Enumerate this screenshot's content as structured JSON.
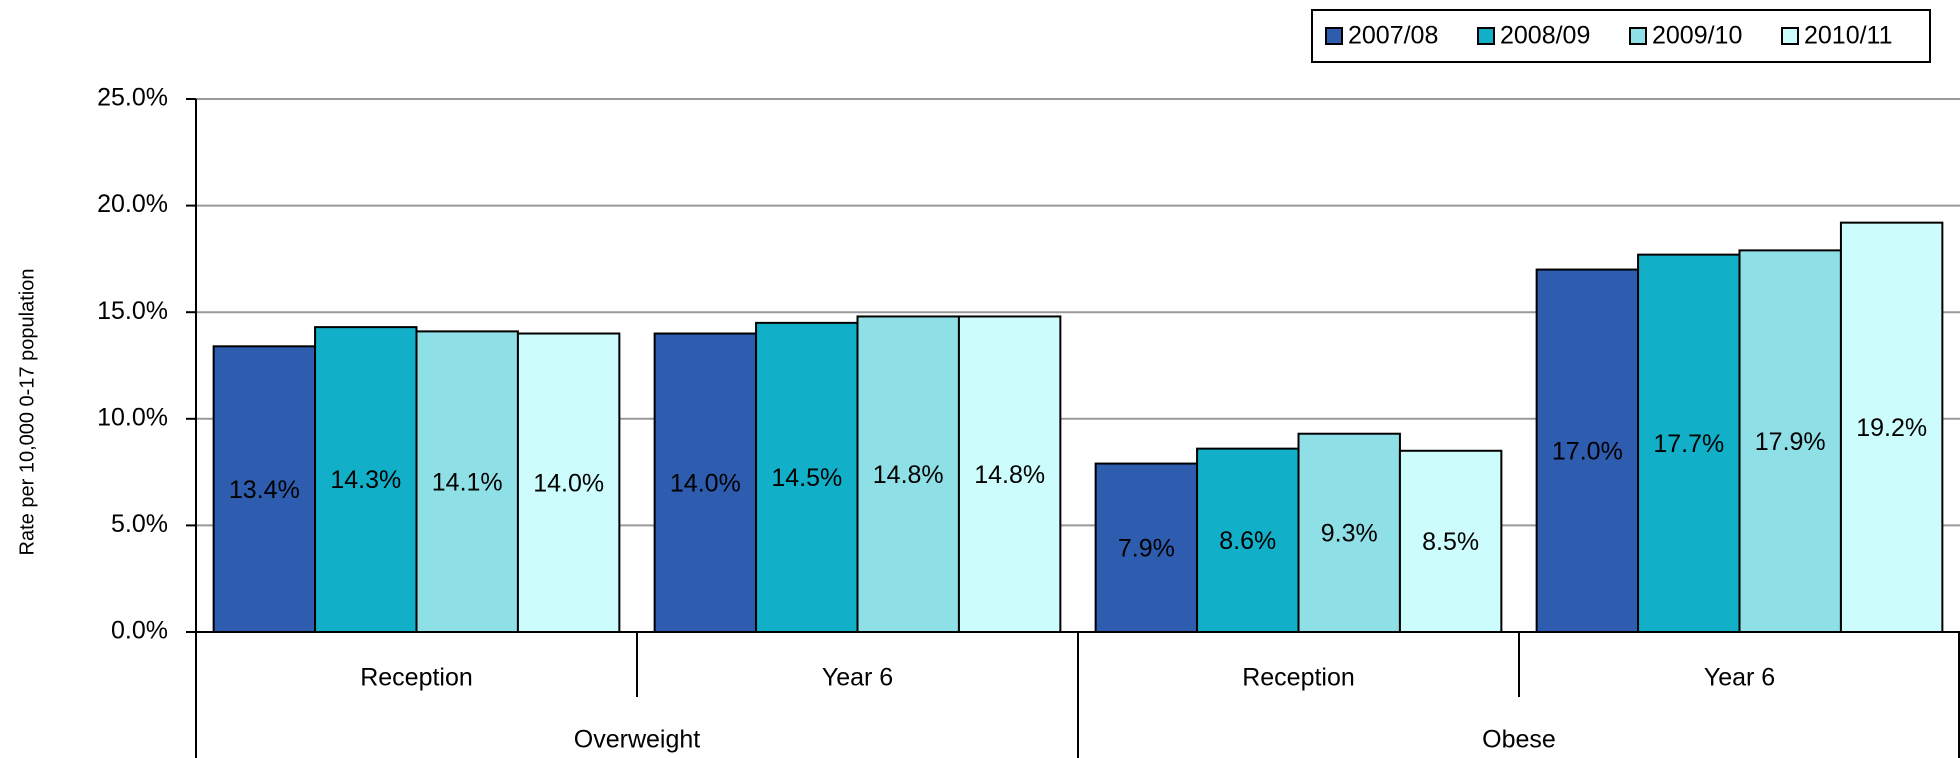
{
  "chart_data": {
    "type": "bar",
    "y_label": "Rate per 10,000 0-17 population",
    "categories": [
      "Reception",
      "Year 6",
      "Reception",
      "Year 6"
    ],
    "group_labels": [
      "Overweight",
      "Obese"
    ],
    "series": [
      {
        "name": "2007/08",
        "color": "#2e5caf",
        "label_color": "#ffffff",
        "values": [
          13.4,
          14.0,
          7.9,
          17.0
        ],
        "value_labels": [
          "13.4%",
          "14.0%",
          "7.9%",
          "17.0%"
        ]
      },
      {
        "name": "2008/09",
        "color": "#12afc8",
        "label_color": "#000000",
        "values": [
          14.3,
          14.5,
          8.6,
          17.7
        ],
        "value_labels": [
          "14.3%",
          "14.5%",
          "8.6%",
          "17.7%"
        ]
      },
      {
        "name": "2009/10",
        "color": "#8fe0e6",
        "label_color": "#000000",
        "values": [
          14.1,
          14.8,
          9.3,
          17.9
        ],
        "value_labels": [
          "14.1%",
          "14.8%",
          "9.3%",
          "17.9%"
        ]
      },
      {
        "name": "2010/11",
        "color": "#ccfcfc",
        "label_color": "#000000",
        "values": [
          14.0,
          14.8,
          8.5,
          19.2
        ],
        "value_labels": [
          "14.0%",
          "14.8%",
          "8.5%",
          "19.2%"
        ]
      }
    ],
    "ylim": [
      0,
      25
    ],
    "yticks": [
      {
        "value": 0,
        "label": "0.0%"
      },
      {
        "value": 5,
        "label": "5.0%"
      },
      {
        "value": 10,
        "label": "10.0%"
      },
      {
        "value": 15,
        "label": "15.0%"
      },
      {
        "value": 20,
        "label": "20.0%"
      },
      {
        "value": 25,
        "label": "25.0%"
      }
    ],
    "grid": true,
    "legend": "top-right"
  }
}
